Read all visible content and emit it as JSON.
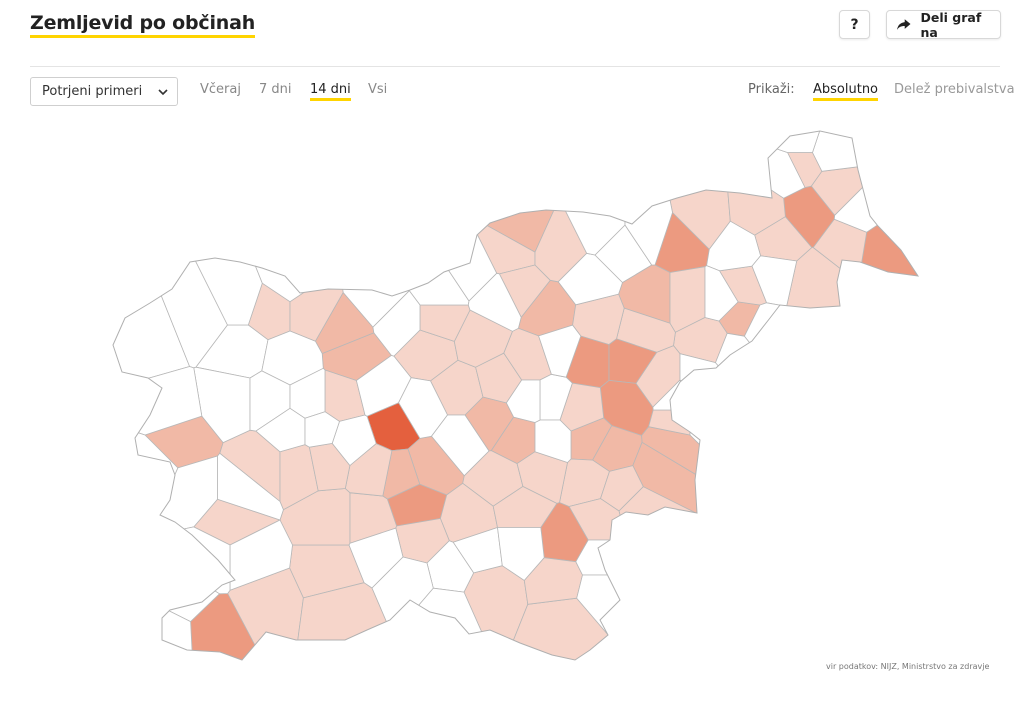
{
  "header": {
    "title": "Zemljevid po občinah",
    "help_label": "?",
    "share_label": "Deli graf na"
  },
  "controls": {
    "select_value": "Potrjeni primeri",
    "period_tabs": [
      "Včeraj",
      "7 dni",
      "14 dni",
      "Vsi"
    ],
    "active_period": "14 dni",
    "show_label": "Prikaži:",
    "modes": [
      "Absolutno",
      "Delež prebivalstva"
    ],
    "active_mode": "Absolutno"
  },
  "colors": {
    "accent": "#ffd400",
    "border": "#b8b8b8",
    "level_0": "#ffffff",
    "level_1": "#f6d5ca",
    "level_2": "#f1b9a6",
    "level_3": "#ec9a80",
    "level_max": "#e4603e"
  },
  "footer": {
    "source": "vir podatkov: NIJZ, Ministrstvo za zdravje"
  }
}
